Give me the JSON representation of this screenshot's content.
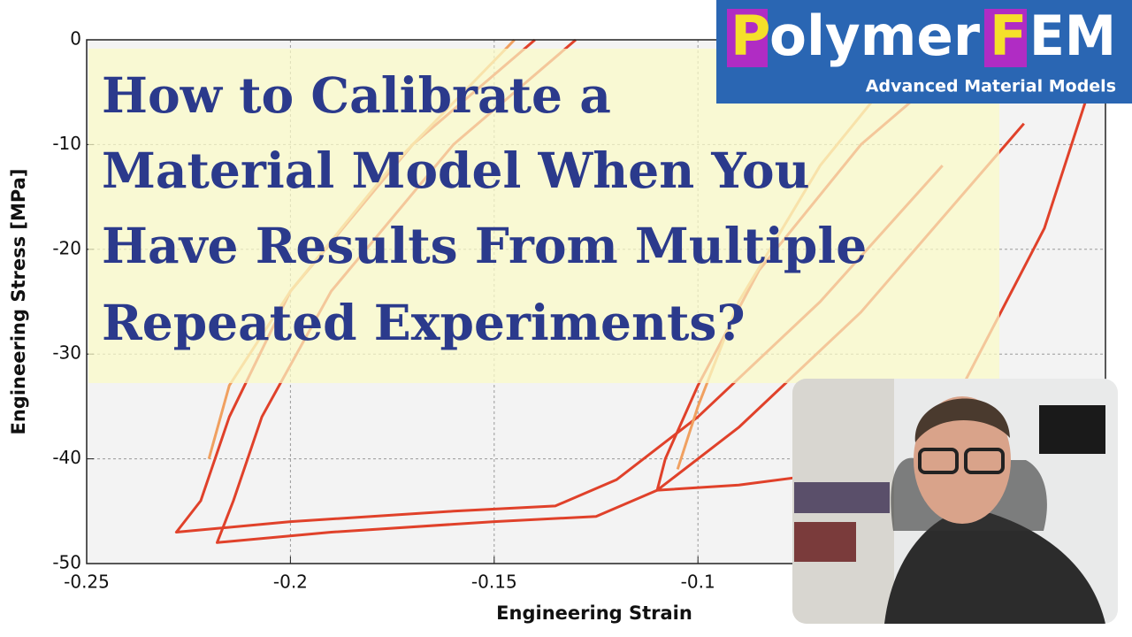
{
  "chart_data": {
    "type": "line",
    "x_label": "Engineering Strain",
    "y_label": "Engineering Stress [MPa]",
    "xlim": [
      -0.25,
      0
    ],
    "ylim": [
      -50,
      0
    ],
    "xticks": [
      -0.25,
      -0.2,
      -0.15,
      -0.1
    ],
    "yticks": [
      0,
      -10,
      -20,
      -30,
      -40,
      -50
    ],
    "grid": true,
    "series": [
      {
        "color": "#e0412a",
        "x": [
          -0.14,
          -0.17,
          -0.2,
          -0.215,
          -0.222,
          -0.228,
          -0.2,
          -0.16,
          -0.135,
          -0.12,
          -0.1,
          -0.07,
          -0.04
        ],
        "values": [
          0,
          -10,
          -24,
          -36,
          -44,
          -47,
          -46,
          -45,
          -44.5,
          -42,
          -36,
          -25,
          -12
        ]
      },
      {
        "color": "#e0412a",
        "x": [
          -0.13,
          -0.16,
          -0.19,
          -0.207,
          -0.214,
          -0.218,
          -0.19,
          -0.15,
          -0.125,
          -0.11,
          -0.09,
          -0.06,
          -0.02
        ],
        "values": [
          0,
          -10,
          -24,
          -36,
          -44,
          -48,
          -47,
          -46,
          -45.5,
          -43,
          -37,
          -26,
          -8
        ]
      },
      {
        "color": "#e0412a",
        "x": [
          -0.03,
          -0.06,
          -0.085,
          -0.1,
          -0.108,
          -0.11,
          -0.09,
          -0.06,
          -0.035,
          -0.015,
          -0.005
        ],
        "values": [
          0,
          -10,
          -22,
          -33,
          -40,
          -43,
          -42.5,
          -41,
          -33,
          -18,
          -6
        ]
      },
      {
        "color": "#f0a060",
        "x": [
          -0.145,
          -0.175,
          -0.2,
          -0.215,
          -0.22
        ],
        "values": [
          0,
          -12,
          -24,
          -33,
          -40
        ]
      },
      {
        "color": "#f0a060",
        "x": [
          -0.045,
          -0.07,
          -0.09,
          -0.1,
          -0.105
        ],
        "values": [
          0,
          -12,
          -25,
          -35,
          -41
        ]
      }
    ]
  },
  "thumbnail": {
    "title_lines": [
      "How to Calibrate a",
      "Material Model When You",
      "Have Results From Multiple",
      "Repeated Experiments?"
    ],
    "logo_parts": [
      "P",
      "olymer",
      "F",
      "EM"
    ],
    "logo_tagline": "Advanced Material Models"
  }
}
